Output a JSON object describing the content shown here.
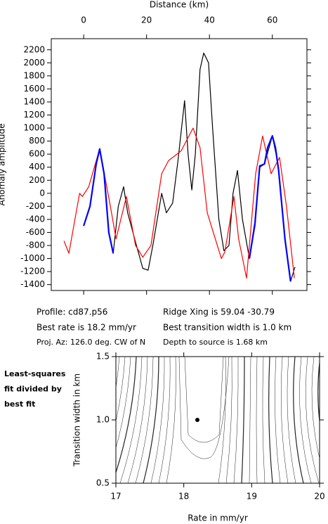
{
  "chart_data": [
    {
      "type": "line",
      "x_label": "Distance (km)",
      "y_label": "Anomaly amplitude",
      "xlim": [
        -10.3,
        71
      ],
      "ylim": [
        -1490,
        2370
      ],
      "xticks": [
        0,
        20,
        40,
        60
      ],
      "yticks": [
        -1400,
        -1200,
        -1000,
        -800,
        -600,
        -400,
        -200,
        0,
        200,
        400,
        600,
        800,
        1000,
        1200,
        1400,
        1600,
        1800,
        2000,
        2200
      ],
      "series": [
        {
          "color": "#000000",
          "x": [
            0,
            2,
            4,
            5.1,
            6.5,
            8,
            9.4,
            11,
            12.7,
            14,
            16.5,
            18.8,
            20.5,
            22,
            24.8,
            26.3,
            28.3,
            30,
            32.1,
            33.2,
            34.4,
            35.5,
            37,
            38.2,
            39.7,
            41,
            43,
            44.6,
            46.2,
            47.5,
            48.9,
            50.5,
            52.7,
            54.5,
            56,
            57.5,
            60,
            62,
            64,
            65.8,
            67.2
          ],
          "values": [
            -500,
            -200,
            450,
            680,
            300,
            -600,
            -920,
            -200,
            100,
            -300,
            -750,
            -1150,
            -1180,
            -800,
            0,
            -300,
            -150,
            500,
            1420,
            600,
            50,
            600,
            1900,
            2150,
            2000,
            1000,
            -400,
            -880,
            -800,
            0,
            350,
            -400,
            -1000,
            -500,
            400,
            450,
            880,
            400,
            -700,
            -1350,
            -1130
          ]
        },
        {
          "color": "#ff0000",
          "x": [
            -6.25,
            -4.7,
            -1.3,
            -0.4,
            1.6,
            5.1,
            8.5,
            10.3,
            13.6,
            16.5,
            18.8,
            21.4,
            24.8,
            27,
            31,
            34.8,
            37,
            39.3,
            43.8,
            44.9,
            47.8,
            49.3,
            51.8,
            54.7,
            56.9,
            59.6,
            62.3,
            64.5,
            67
          ],
          "values": [
            -730,
            -920,
            0,
            -50,
            100,
            680,
            -200,
            -700,
            -50,
            -800,
            -980,
            -800,
            300,
            500,
            650,
            1000,
            700,
            -300,
            -1000,
            -900,
            -50,
            -700,
            -1300,
            300,
            880,
            300,
            550,
            -200,
            -1300
          ]
        },
        {
          "color": "#0000ff",
          "x": [
            0,
            2,
            4,
            5.1,
            6.5,
            8,
            9.4,
            null,
            52.7,
            54.5,
            56,
            57.5,
            58.5,
            60,
            61,
            62,
            64,
            65.8
          ],
          "values": [
            -500,
            -200,
            450,
            680,
            300,
            -600,
            -920,
            null,
            -1000,
            -450,
            420,
            450,
            700,
            880,
            700,
            350,
            -700,
            -1350
          ]
        }
      ]
    },
    {
      "type": "contour",
      "x_label": "Rate in mm/yr",
      "y_label": "Transition width in km",
      "xlim": [
        17,
        20
      ],
      "ylim": [
        0.5,
        1.5
      ],
      "xticks": [
        17,
        18,
        19,
        20
      ],
      "yticks": [
        {
          "value": 0.5,
          "label": "0.5"
        },
        {
          "value": 1.0,
          "label": "1.0"
        },
        {
          "value": 1.5,
          "label": "1.5"
        }
      ],
      "best_fit": {
        "x": 18.2,
        "y": 1.0
      },
      "note": [
        "Least-squares",
        "fit divided by",
        "best fit"
      ]
    }
  ],
  "info": {
    "profile": "Profile: cd87.p56",
    "ridge": "Ridge Xing is 59.04 -30.79",
    "rate": "Best rate is 18.2 mm/yr",
    "width": "Best transition width is 1.0 km",
    "azimuth": "Proj. Az: 126.0 deg. CW of N",
    "depth": "Depth to source is   1.68 km"
  }
}
